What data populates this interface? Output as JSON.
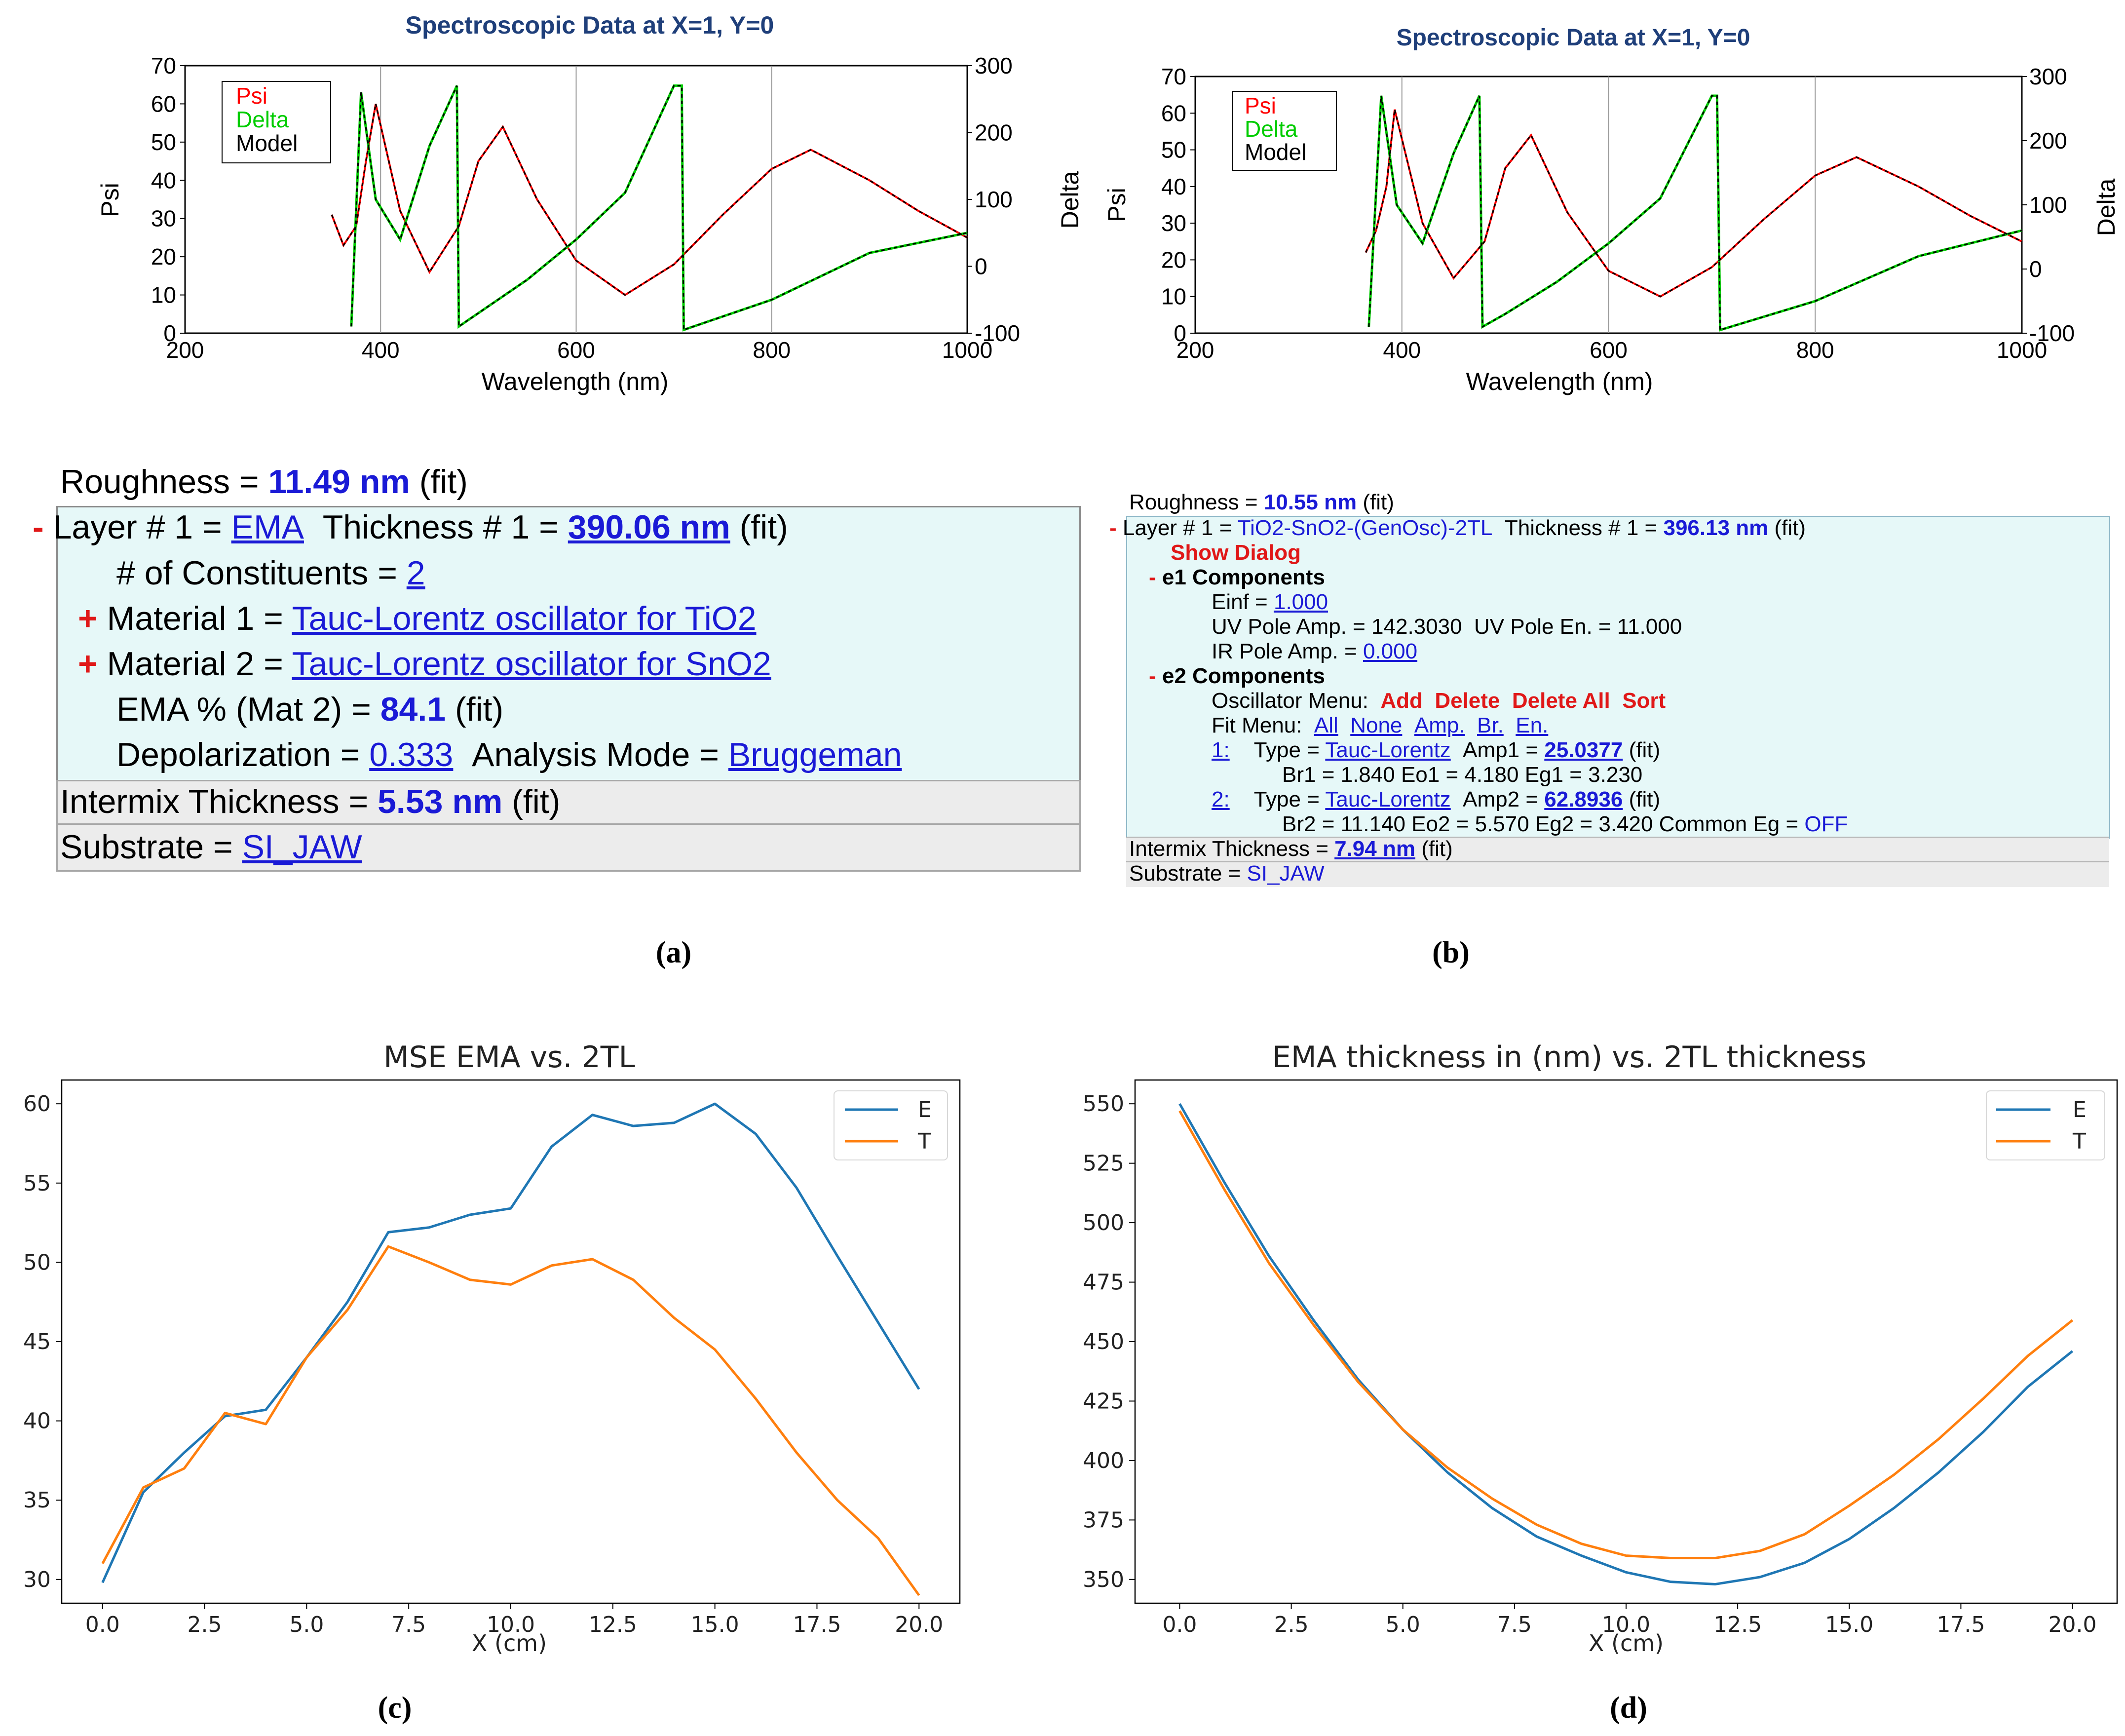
{
  "panel_labels": {
    "a": "(a)",
    "b": "(b)",
    "c": "(c)",
    "d": "(d)"
  },
  "colors": {
    "psi": "#ff0000",
    "delta": "#00cc00",
    "model": "#000000",
    "mpl_blue": "#1f77b4",
    "mpl_orange": "#ff7f0e",
    "value_blue": "#1a1ad6",
    "action_red": "#e01818"
  },
  "panel_a": {
    "chart": {
      "title": "Spectroscopic Data at X=1, Y=0",
      "xlabel": "Wavelength (nm)",
      "ylabel_left": "Psi",
      "ylabel_right": "Delta",
      "x_ticks": [
        "200",
        "400",
        "600",
        "800",
        "1000"
      ],
      "y_left_ticks": [
        "0",
        "10",
        "20",
        "30",
        "40",
        "50",
        "60",
        "70"
      ],
      "y_right_ticks": [
        "-100",
        "0",
        "100",
        "200",
        "300"
      ],
      "legend": [
        "Psi",
        "Delta",
        "Model"
      ]
    },
    "model": {
      "roughness_label": "Roughness = ",
      "roughness_value": "11.49 nm",
      "fit": "(fit)",
      "collapse": "-",
      "layer_label": "Layer # 1 = ",
      "layer_name": "EMA",
      "thickness_label": "Thickness # 1 = ",
      "thickness_value": "390.06 nm",
      "constituents_label": "# of Constituents = ",
      "constituents_value": "2",
      "expand": "+",
      "material1_label": "Material 1 = ",
      "material1_value": "Tauc-Lorentz oscillator for TiO2",
      "material2_label": "Material 2 = ",
      "material2_value": "Tauc-Lorentz oscillator for SnO2",
      "ema_label": "EMA % (Mat 2) = ",
      "ema_value": "84.1",
      "depol_label": "Depolarization = ",
      "depol_value": "0.333",
      "mode_label": "Analysis Mode = ",
      "mode_value": "Bruggeman",
      "intermix_label": "Intermix Thickness = ",
      "intermix_value": "5.53 nm",
      "substrate_label": "Substrate = ",
      "substrate_value": "SI_JAW"
    }
  },
  "panel_b": {
    "chart": {
      "title": "Spectroscopic Data at X=1, Y=0",
      "xlabel": "Wavelength (nm)",
      "ylabel_left": "Psi",
      "ylabel_right": "Delta",
      "x_ticks": [
        "200",
        "400",
        "600",
        "800",
        "1000"
      ],
      "y_left_ticks": [
        "0",
        "10",
        "20",
        "30",
        "40",
        "50",
        "60",
        "70"
      ],
      "y_right_ticks": [
        "-100",
        "0",
        "100",
        "200",
        "300"
      ],
      "legend": [
        "Psi",
        "Delta",
        "Model"
      ]
    },
    "model": {
      "roughness_label": "Roughness = ",
      "roughness_value": "10.55 nm",
      "fit": "(fit)",
      "collapse": "-",
      "layer_label": "Layer # 1 = ",
      "layer_name": "TiO2-SnO2-(GenOsc)-2TL",
      "thickness_label": "Thickness # 1 = ",
      "thickness_value": "396.13 nm",
      "show_dialog": "Show Dialog",
      "e1_header": "e1 Components",
      "einf_label": "Einf = ",
      "einf_value": "1.000",
      "uv_amp_label": "UV Pole Amp. = 142.3030",
      "uv_en_label": "UV Pole En. = 11.000",
      "ir_amp_label": "IR Pole Amp. = ",
      "ir_amp_value": "0.000",
      "e2_header": "e2 Components",
      "osc_menu_label": "Oscillator Menu:",
      "osc_add": "Add",
      "osc_delete": "Delete",
      "osc_delete_all": "Delete All",
      "osc_sort": "Sort",
      "fit_menu_label": "Fit Menu:",
      "fit_all": "All",
      "fit_none": "None",
      "fit_amp": "Amp.",
      "fit_br": "Br.",
      "fit_en": "En.",
      "osc1_index": "1:",
      "osc1_type_label": "Type = ",
      "osc1_type": "Tauc-Lorentz",
      "osc1_amp_label": "Amp1 = ",
      "osc1_amp": "25.0377",
      "osc1_params": "Br1 = 1.840   Eo1 = 4.180   Eg1 = 3.230",
      "osc2_index": "2:",
      "osc2_type_label": "Type = ",
      "osc2_type": "Tauc-Lorentz",
      "osc2_amp_label": "Amp2 = ",
      "osc2_amp": "62.8936",
      "osc2_params": "Br2 = 11.140   Eo2 = 5.570   Eg2 = 3.420   Common Eg = ",
      "common_eg": "OFF",
      "intermix_label": "Intermix Thickness = ",
      "intermix_value": "7.94 nm",
      "substrate_label": "Substrate = ",
      "substrate_value": "SI_JAW"
    }
  },
  "chart_data": [
    {
      "type": "line",
      "title": "Spectroscopic Data at X=1, Y=0",
      "xlabel": "Wavelength (nm)",
      "ylabel": "Psi",
      "y2label": "Delta",
      "xlim": [
        200,
        1000
      ],
      "ylim": [
        0,
        70
      ],
      "y2lim": [
        -100,
        300
      ],
      "series": [
        {
          "name": "Psi",
          "axis": "left",
          "x": [
            350,
            362,
            375,
            385,
            395,
            420,
            450,
            480,
            500,
            525,
            560,
            600,
            650,
            700,
            750,
            800,
            840,
            900,
            950,
            1000
          ],
          "values": [
            31,
            23,
            28,
            45,
            60,
            32,
            16,
            28,
            45,
            54,
            35,
            19,
            10,
            18,
            31,
            43,
            48,
            40,
            32,
            25
          ]
        },
        {
          "name": "Delta",
          "axis": "left-scaled-right",
          "x": [
            370,
            380,
            395,
            420,
            450,
            478,
            480,
            500,
            550,
            600,
            650,
            700,
            708,
            710,
            800,
            900,
            1000
          ],
          "values": [
            -90,
            260,
            100,
            40,
            180,
            270,
            -90,
            -70,
            -20,
            40,
            110,
            270,
            270,
            -95,
            -50,
            20,
            50
          ]
        }
      ]
    },
    {
      "type": "line",
      "title": "Spectroscopic Data at X=1, Y=0",
      "xlabel": "Wavelength (nm)",
      "ylabel": "Psi",
      "y2label": "Delta",
      "xlim": [
        200,
        1000
      ],
      "ylim": [
        0,
        70
      ],
      "y2lim": [
        -100,
        300
      ],
      "series": [
        {
          "name": "Psi",
          "axis": "left",
          "x": [
            365,
            375,
            385,
            393,
            420,
            450,
            480,
            500,
            525,
            560,
            600,
            650,
            700,
            750,
            800,
            840,
            900,
            950,
            1000
          ],
          "values": [
            22,
            28,
            40,
            61,
            30,
            15,
            25,
            45,
            54,
            33,
            17,
            10,
            18,
            31,
            43,
            48,
            40,
            32,
            25
          ]
        },
        {
          "name": "Delta",
          "axis": "left-scaled-right",
          "x": [
            368,
            380,
            395,
            420,
            450,
            475,
            478,
            500,
            550,
            600,
            650,
            700,
            705,
            708,
            800,
            900,
            1000
          ],
          "values": [
            -90,
            270,
            100,
            40,
            180,
            270,
            -90,
            -70,
            -20,
            40,
            110,
            270,
            270,
            -95,
            -50,
            20,
            60
          ]
        }
      ]
    },
    {
      "type": "line",
      "title": "MSE EMA vs. 2TL",
      "xlabel": "X (cm)",
      "ylabel": "",
      "xlim": [
        -1,
        21
      ],
      "ylim": [
        28.5,
        61.5
      ],
      "x_ticks": [
        "0.0",
        "2.5",
        "5.0",
        "7.5",
        "10.0",
        "12.5",
        "15.0",
        "17.5",
        "20.0"
      ],
      "y_ticks": [
        "30",
        "35",
        "40",
        "45",
        "50",
        "55",
        "60"
      ],
      "x": [
        0,
        1,
        2,
        3,
        4,
        5,
        6,
        7,
        8,
        9,
        10,
        11,
        12,
        13,
        14,
        15,
        16,
        17,
        18,
        19,
        20
      ],
      "series": [
        {
          "name": "E",
          "values": [
            29.8,
            35.5,
            38,
            40.3,
            40.7,
            44,
            47.5,
            51.9,
            52.2,
            53,
            53.4,
            57.3,
            59.3,
            58.6,
            58.8,
            60,
            58.1,
            54.7,
            50.4,
            46.2,
            42
          ]
        },
        {
          "name": "T",
          "values": [
            31,
            35.8,
            37,
            40.5,
            39.8,
            44,
            47,
            51,
            50,
            48.9,
            48.6,
            49.8,
            50.2,
            48.9,
            46.5,
            44.5,
            41.4,
            38,
            35,
            32.6,
            29
          ]
        }
      ]
    },
    {
      "type": "line",
      "title": "EMA thickness in (nm) vs. 2TL thickness",
      "xlabel": "X (cm)",
      "ylabel": "",
      "xlim": [
        -1,
        21
      ],
      "ylim": [
        340,
        560
      ],
      "x_ticks": [
        "0.0",
        "2.5",
        "5.0",
        "7.5",
        "10.0",
        "12.5",
        "15.0",
        "17.5",
        "20.0"
      ],
      "y_ticks": [
        "350",
        "375",
        "400",
        "425",
        "450",
        "475",
        "500",
        "525",
        "550"
      ],
      "x": [
        0,
        1,
        2,
        3,
        4,
        5,
        6,
        7,
        8,
        9,
        10,
        11,
        12,
        13,
        14,
        15,
        16,
        17,
        18,
        19,
        20
      ],
      "series": [
        {
          "name": "E",
          "values": [
            550,
            517,
            486,
            459,
            434,
            413,
            395,
            380,
            368,
            360,
            353,
            349,
            348,
            351,
            357,
            367,
            380,
            395,
            412,
            431,
            446
          ]
        },
        {
          "name": "T",
          "values": [
            547,
            514,
            483,
            457,
            433,
            413,
            397,
            384,
            373,
            365,
            360,
            359,
            359,
            362,
            369,
            381,
            394,
            409,
            426,
            444,
            459
          ]
        }
      ]
    }
  ]
}
